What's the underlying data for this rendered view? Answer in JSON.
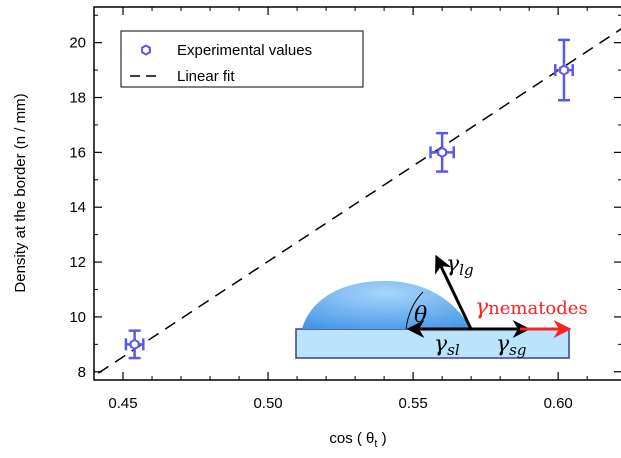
{
  "chart_data": {
    "type": "scatter",
    "xlabel": "cos ( θ",
    "xlabel_sub": "t",
    "xlabel_end": " )",
    "ylabel": "Density at the border (n / mm)",
    "xlim": [
      0.44,
      0.622
    ],
    "ylim": [
      7.7,
      21.3
    ],
    "x_ticks": [
      0.45,
      0.5,
      0.55,
      0.6
    ],
    "x_tick_labels": [
      "0.45",
      "0.50",
      "0.55",
      "0.60"
    ],
    "y_ticks": [
      8,
      10,
      12,
      14,
      16,
      18,
      20
    ],
    "y_tick_labels": [
      "8",
      "10",
      "12",
      "14",
      "16",
      "18",
      "20"
    ],
    "grid": false,
    "legend_position": "top-left",
    "series": [
      {
        "name": "Experimental values",
        "kind": "points",
        "color": "#5a5ae6",
        "points": [
          {
            "x": 0.454,
            "y": 9.0,
            "yerr": 0.5,
            "xerr": 0.003
          },
          {
            "x": 0.56,
            "y": 16.0,
            "yerr": 0.7,
            "xerr": 0.004
          },
          {
            "x": 0.602,
            "y": 19.0,
            "yerr": 1.1,
            "xerr": 0.003
          }
        ]
      },
      {
        "name": "Linear fit",
        "kind": "line",
        "style": "dashed",
        "color": "#000000",
        "x": [
          0.4415,
          0.622
        ],
        "y": [
          7.95,
          20.52
        ]
      }
    ],
    "inset": {
      "labels": {
        "lg": "γ",
        "lg_sub": "lg",
        "theta": "θ",
        "nematodes": "γ",
        "nematodes_sub": "nematodes",
        "sl": "γ",
        "sl_sub": "sl",
        "sg": "γ",
        "sg_sub": "sg"
      },
      "colors": {
        "substrate_fill": "#b9e4fb",
        "substrate_stroke": "#3c3c9a",
        "drop": "#58a8f0",
        "nematodes": "#ff2020"
      }
    }
  }
}
